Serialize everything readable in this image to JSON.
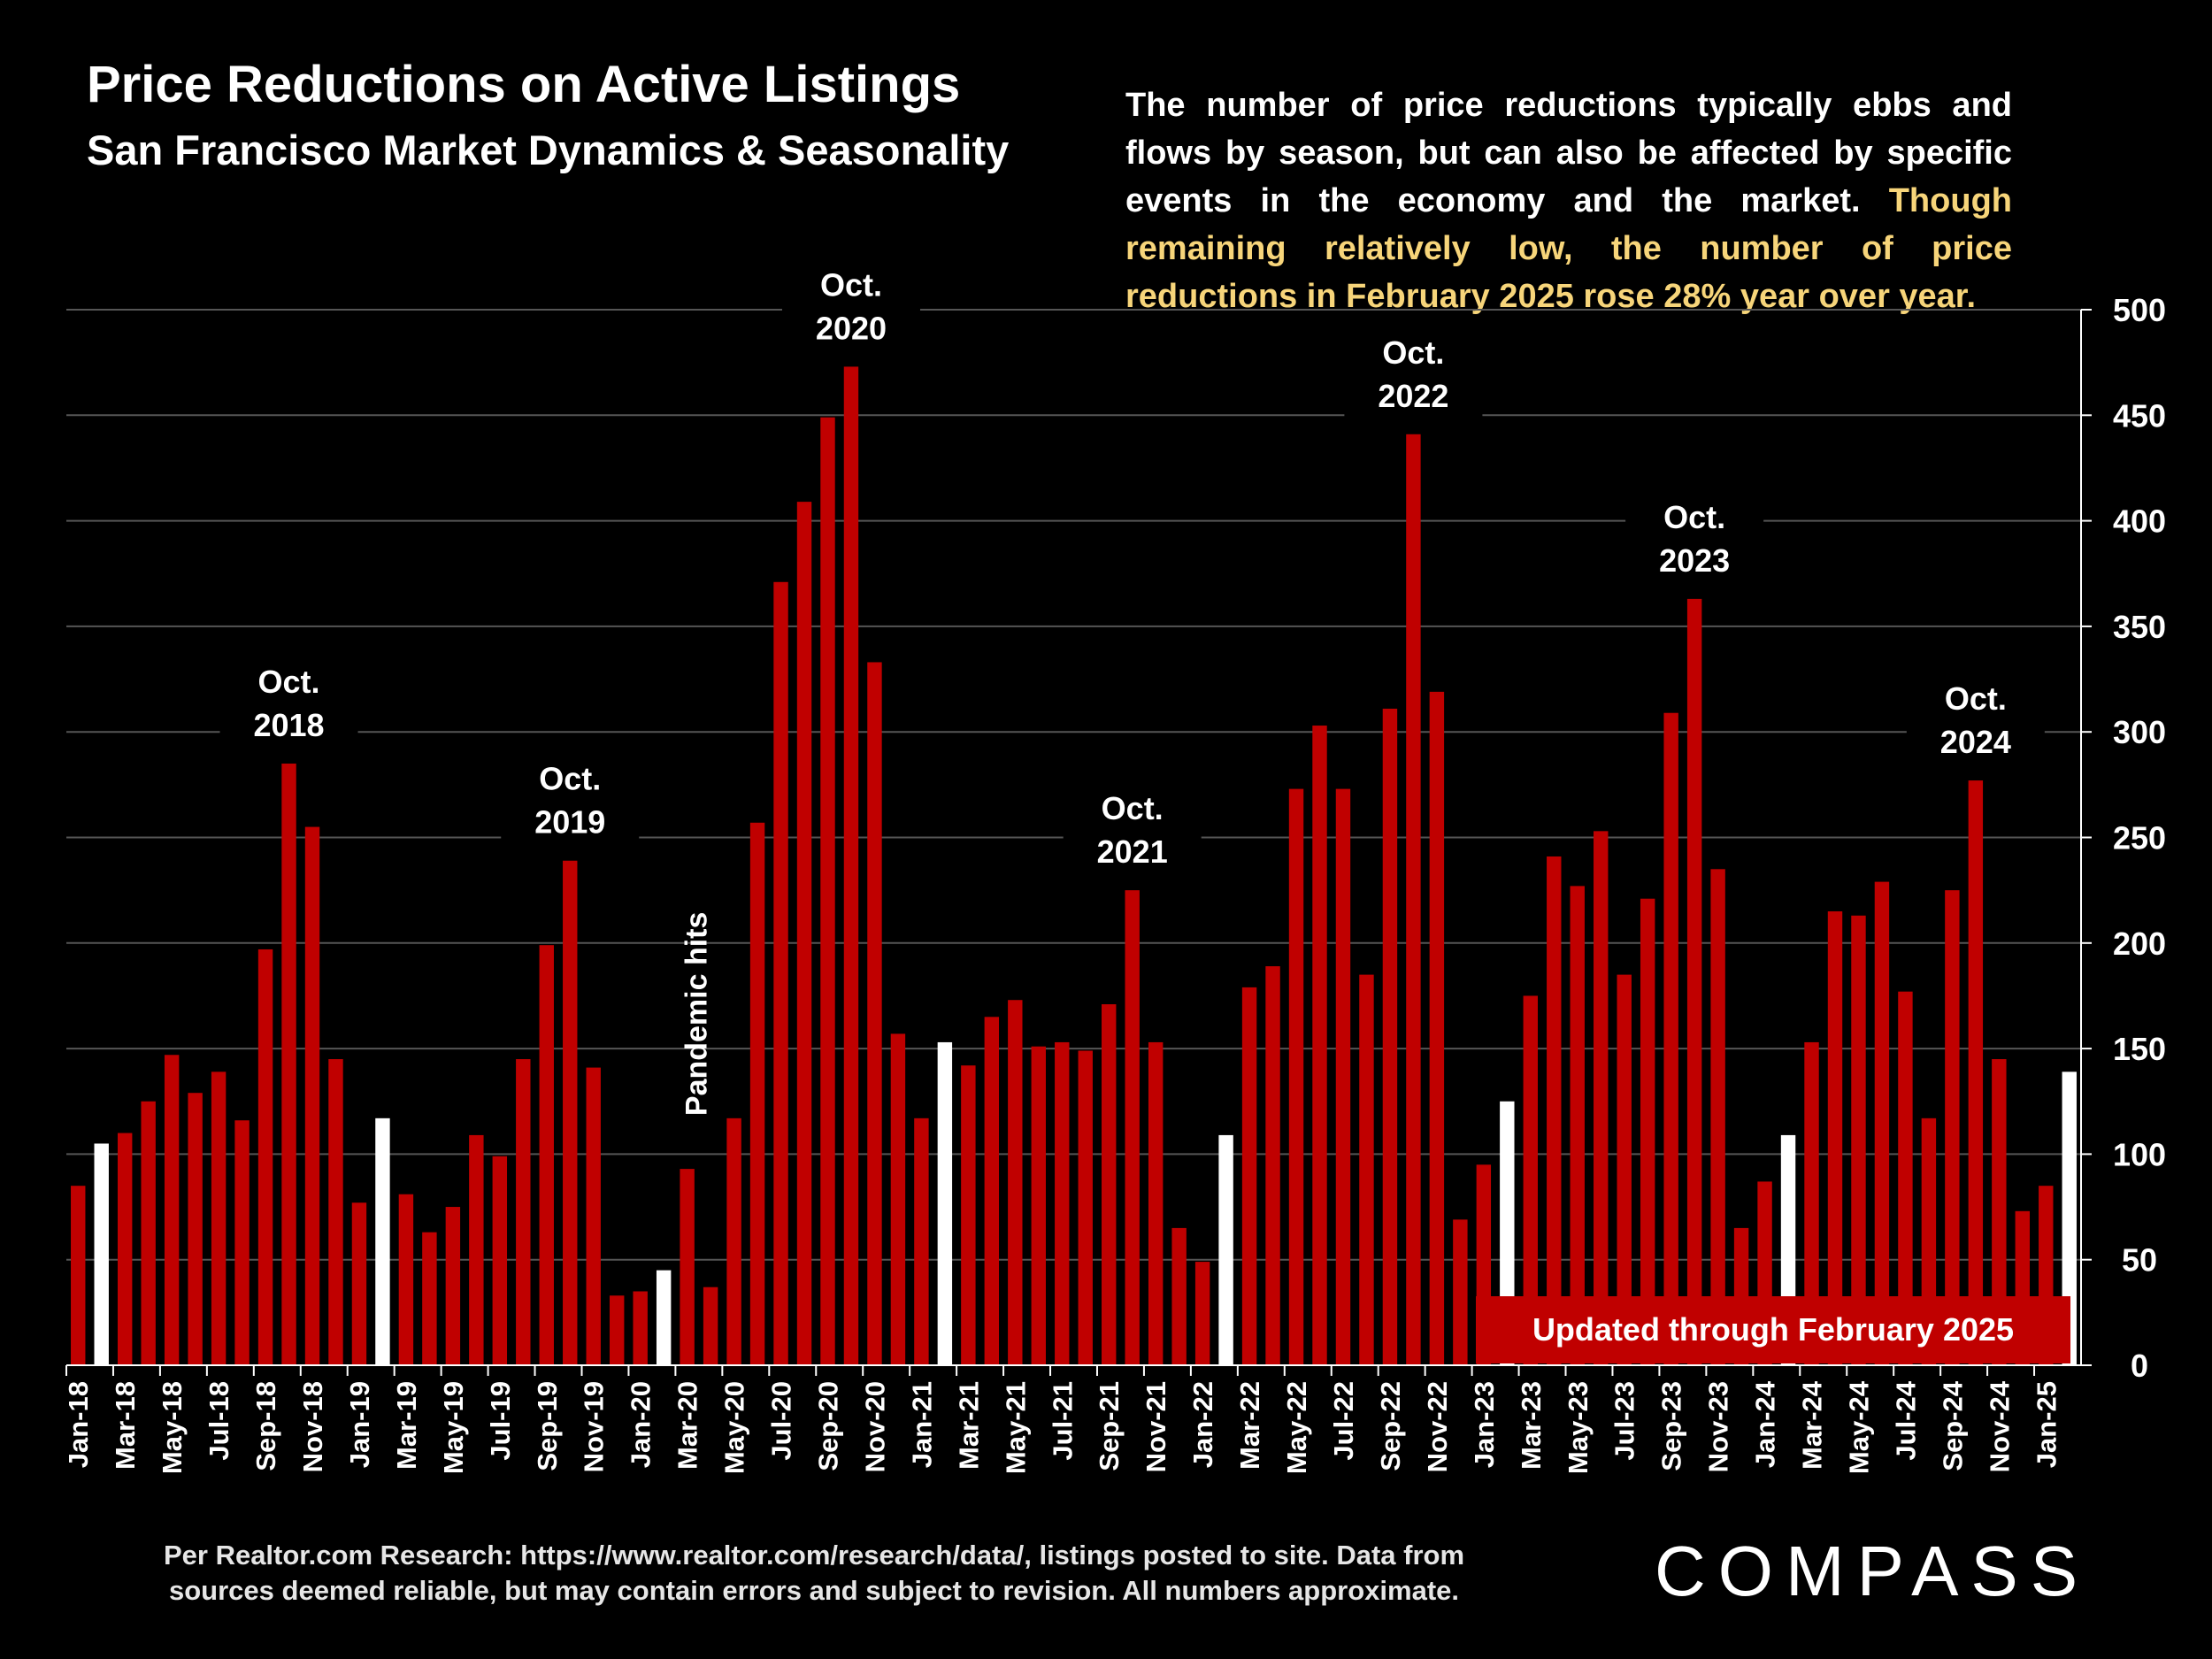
{
  "title": "Price Reductions on Active Listings",
  "subtitle": "San Francisco Market Dynamics & Seasonality",
  "description": {
    "normal": "The number of price reductions typically ebbs and flows by season, but can also be affected by specific events in the economy and the market. ",
    "highlight": "Though remaining relatively low, the number of price reductions in February 2025 rose 28% year over year."
  },
  "updated_badge": "Updated through February 2025",
  "footnote_line1": "Per Realtor.com Research:  https://www.realtor.com/research/data/, listings posted to site. Data from",
  "footnote_line2": "sources deemed reliable, but may contain errors and subject to revision. All numbers approximate.",
  "logo_text": "COMPASS",
  "colors": {
    "bar": "#c00000",
    "february_bar": "#ffffff",
    "grid": "#555555",
    "highlight": "#f7d57a",
    "background": "#000000"
  },
  "chart_data": {
    "type": "bar",
    "title": "Price Reductions on Active Listings",
    "ylim": [
      0,
      500
    ],
    "yticks": [
      0,
      50,
      100,
      150,
      200,
      250,
      300,
      350,
      400,
      450,
      500
    ],
    "y_axis_side": "right",
    "grid": true,
    "categories": [
      "Jan-18",
      "Feb-18",
      "Mar-18",
      "Apr-18",
      "May-18",
      "Jun-18",
      "Jul-18",
      "Aug-18",
      "Sep-18",
      "Oct-18",
      "Nov-18",
      "Dec-18",
      "Jan-19",
      "Feb-19",
      "Mar-19",
      "Apr-19",
      "May-19",
      "Jun-19",
      "Jul-19",
      "Aug-19",
      "Sep-19",
      "Oct-19",
      "Nov-19",
      "Dec-19",
      "Jan-20",
      "Feb-20",
      "Mar-20",
      "Apr-20",
      "May-20",
      "Jun-20",
      "Jul-20",
      "Aug-20",
      "Sep-20",
      "Oct-20",
      "Nov-20",
      "Dec-20",
      "Jan-21",
      "Feb-21",
      "Mar-21",
      "Apr-21",
      "May-21",
      "Jun-21",
      "Jul-21",
      "Aug-21",
      "Sep-21",
      "Oct-21",
      "Nov-21",
      "Dec-21",
      "Jan-22",
      "Feb-22",
      "Mar-22",
      "Apr-22",
      "May-22",
      "Jun-22",
      "Jul-22",
      "Aug-22",
      "Sep-22",
      "Oct-22",
      "Nov-22",
      "Dec-22",
      "Jan-23",
      "Feb-23",
      "Mar-23",
      "Apr-23",
      "May-23",
      "Jun-23",
      "Jul-23",
      "Aug-23",
      "Sep-23",
      "Oct-23",
      "Nov-23",
      "Dec-23",
      "Jan-24",
      "Feb-24",
      "Mar-24",
      "Apr-24",
      "May-24",
      "Jun-24",
      "Jul-24",
      "Aug-24",
      "Sep-24",
      "Oct-24",
      "Nov-24",
      "Dec-24",
      "Jan-25",
      "Feb-25"
    ],
    "x_tick_labels": [
      "Jan-18",
      "Mar-18",
      "May-18",
      "Jul-18",
      "Sep-18",
      "Nov-18",
      "Jan-19",
      "Mar-19",
      "May-19",
      "Jul-19",
      "Sep-19",
      "Nov-19",
      "Jan-20",
      "Mar-20",
      "May-20",
      "Jul-20",
      "Sep-20",
      "Nov-20",
      "Jan-21",
      "Mar-21",
      "May-21",
      "Jul-21",
      "Sep-21",
      "Nov-21",
      "Jan-22",
      "Mar-22",
      "May-22",
      "Jul-22",
      "Sep-22",
      "Nov-22",
      "Jan-23",
      "Mar-23",
      "May-23",
      "Jul-23",
      "Sep-23",
      "Nov-23",
      "Jan-24",
      "Mar-24",
      "May-24",
      "Jul-24",
      "Sep-24",
      "Nov-24",
      "Jan-25"
    ],
    "values": [
      85,
      105,
      110,
      125,
      147,
      129,
      139,
      116,
      197,
      285,
      255,
      145,
      77,
      117,
      81,
      63,
      75,
      109,
      99,
      145,
      199,
      239,
      141,
      33,
      35,
      45,
      93,
      37,
      117,
      257,
      371,
      409,
      449,
      473,
      333,
      157,
      117,
      153,
      142,
      165,
      173,
      151,
      153,
      149,
      171,
      225,
      153,
      65,
      49,
      109,
      179,
      189,
      273,
      303,
      273,
      185,
      311,
      441,
      319,
      69,
      95,
      125,
      175,
      241,
      227,
      253,
      185,
      221,
      309,
      363,
      235,
      65,
      87,
      109,
      153,
      215,
      213,
      229,
      177,
      117,
      225,
      277,
      145,
      73,
      85,
      139
    ],
    "highlighted_month": "Feb",
    "annotations": [
      {
        "text": [
          "Oct.",
          "2018"
        ],
        "category": "Oct-18"
      },
      {
        "text": [
          "Oct.",
          "2019"
        ],
        "category": "Oct-19"
      },
      {
        "text": [
          "Oct.",
          "2020"
        ],
        "category": "Oct-20"
      },
      {
        "text": [
          "Oct.",
          "2021"
        ],
        "category": "Oct-21"
      },
      {
        "text": [
          "Oct.",
          "2022"
        ],
        "category": "Oct-22"
      },
      {
        "text": [
          "Oct.",
          "2023"
        ],
        "category": "Oct-23"
      },
      {
        "text": [
          "Oct.",
          "2024"
        ],
        "category": "Oct-24"
      },
      {
        "text": [
          "Pandemic hits"
        ],
        "category": "Mar-20",
        "rotated": true
      }
    ]
  }
}
